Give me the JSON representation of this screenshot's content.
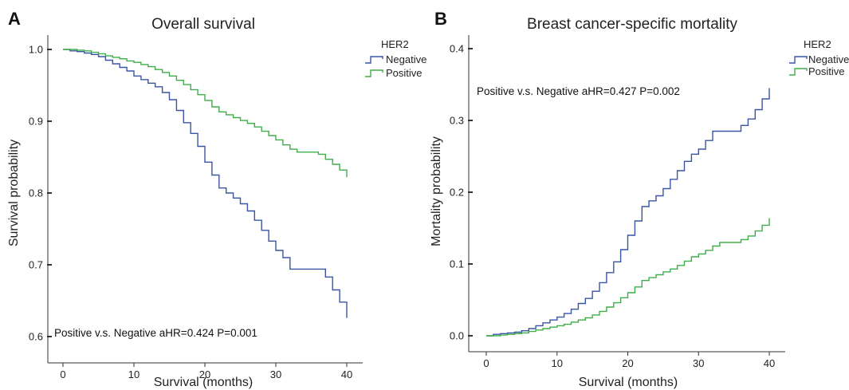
{
  "colors": {
    "negative": "#3a55a4",
    "positive": "#3fae49",
    "axis": "#333333"
  },
  "chart_data": [
    {
      "type": "line",
      "panel_label": "A",
      "title": "Overall survival",
      "xlabel": "Survival (months)",
      "ylabel": "Survival probability",
      "xlim": [
        0,
        40
      ],
      "ylim": [
        0.6,
        1.0
      ],
      "xticks": [
        "0",
        "10",
        "20",
        "30",
        "40"
      ],
      "yticks": [
        "0.6",
        "0.7",
        "0.8",
        "0.9",
        "1.0"
      ],
      "xtick_values": [
        0,
        10,
        20,
        30,
        40
      ],
      "ytick_values": [
        0.6,
        0.7,
        0.8,
        0.9,
        1.0
      ],
      "legend_title": "HER2",
      "legend_position": "top-right",
      "annotation": "Positive v.s. Negative aHR=0.424 P=0.001",
      "annotation_position": "bottom-left",
      "series": [
        {
          "name": "Negative",
          "color": "#3a55a4",
          "x": [
            0,
            1,
            2,
            3,
            4,
            5,
            6,
            7,
            8,
            9,
            10,
            11,
            12,
            13,
            14,
            15,
            16,
            17,
            18,
            19,
            20,
            21,
            22,
            23,
            24,
            25,
            26,
            27,
            28,
            29,
            30,
            31,
            32,
            33,
            34,
            35,
            36,
            37,
            38,
            39,
            40
          ],
          "y": [
            1.0,
            0.998,
            0.997,
            0.995,
            0.993,
            0.99,
            0.985,
            0.98,
            0.975,
            0.97,
            0.963,
            0.958,
            0.953,
            0.948,
            0.94,
            0.93,
            0.915,
            0.898,
            0.883,
            0.865,
            0.843,
            0.825,
            0.807,
            0.8,
            0.793,
            0.785,
            0.775,
            0.762,
            0.748,
            0.733,
            0.72,
            0.71,
            0.694,
            0.694,
            0.694,
            0.694,
            0.694,
            0.683,
            0.665,
            0.648,
            0.626
          ]
        },
        {
          "name": "Positive",
          "color": "#3fae49",
          "x": [
            0,
            1,
            2,
            3,
            4,
            5,
            6,
            7,
            8,
            9,
            10,
            11,
            12,
            13,
            14,
            15,
            16,
            17,
            18,
            19,
            20,
            21,
            22,
            23,
            24,
            25,
            26,
            27,
            28,
            29,
            30,
            31,
            32,
            33,
            34,
            35,
            36,
            37,
            38,
            39,
            40
          ],
          "y": [
            1.0,
            1.0,
            0.999,
            0.998,
            0.996,
            0.994,
            0.991,
            0.989,
            0.987,
            0.984,
            0.982,
            0.979,
            0.976,
            0.972,
            0.968,
            0.963,
            0.957,
            0.951,
            0.944,
            0.937,
            0.929,
            0.92,
            0.913,
            0.909,
            0.905,
            0.901,
            0.897,
            0.892,
            0.886,
            0.88,
            0.874,
            0.867,
            0.861,
            0.857,
            0.857,
            0.857,
            0.854,
            0.847,
            0.84,
            0.832,
            0.822
          ]
        }
      ]
    },
    {
      "type": "line",
      "panel_label": "B",
      "title": "Breast cancer-specific mortality",
      "xlabel": "Survival (months)",
      "ylabel": "Mortality probability",
      "xlim": [
        0,
        40
      ],
      "ylim": [
        0.0,
        0.4
      ],
      "xticks": [
        "0",
        "10",
        "20",
        "30",
        "40"
      ],
      "yticks": [
        "0.0",
        "0.1",
        "0.2",
        "0.3",
        "0.4"
      ],
      "xtick_values": [
        0,
        10,
        20,
        30,
        40
      ],
      "ytick_values": [
        0.0,
        0.1,
        0.2,
        0.3,
        0.4
      ],
      "legend_title": "HER2",
      "legend_position": "top-right",
      "annotation": "Positive v.s. Negative aHR=0.427 P=0.002",
      "annotation_position": "top-left",
      "series": [
        {
          "name": "Negative",
          "color": "#3a55a4",
          "x": [
            0,
            1,
            2,
            3,
            4,
            5,
            6,
            7,
            8,
            9,
            10,
            11,
            12,
            13,
            14,
            15,
            16,
            17,
            18,
            19,
            20,
            21,
            22,
            23,
            24,
            25,
            26,
            27,
            28,
            29,
            30,
            31,
            32,
            33,
            34,
            35,
            36,
            37,
            38,
            39,
            40
          ],
          "y": [
            0.0,
            0.002,
            0.003,
            0.004,
            0.005,
            0.007,
            0.01,
            0.014,
            0.018,
            0.022,
            0.026,
            0.031,
            0.037,
            0.045,
            0.052,
            0.062,
            0.074,
            0.088,
            0.103,
            0.12,
            0.14,
            0.16,
            0.18,
            0.188,
            0.195,
            0.205,
            0.218,
            0.23,
            0.243,
            0.253,
            0.26,
            0.272,
            0.285,
            0.285,
            0.285,
            0.285,
            0.293,
            0.302,
            0.315,
            0.33,
            0.345
          ]
        },
        {
          "name": "Positive",
          "color": "#3fae49",
          "x": [
            0,
            1,
            2,
            3,
            4,
            5,
            6,
            7,
            8,
            9,
            10,
            11,
            12,
            13,
            14,
            15,
            16,
            17,
            18,
            19,
            20,
            21,
            22,
            23,
            24,
            25,
            26,
            27,
            28,
            29,
            30,
            31,
            32,
            33,
            34,
            35,
            36,
            37,
            38,
            39,
            40
          ],
          "y": [
            0.0,
            0.0,
            0.001,
            0.002,
            0.003,
            0.004,
            0.006,
            0.008,
            0.01,
            0.012,
            0.014,
            0.016,
            0.019,
            0.022,
            0.025,
            0.029,
            0.034,
            0.04,
            0.046,
            0.053,
            0.06,
            0.068,
            0.077,
            0.081,
            0.085,
            0.089,
            0.093,
            0.098,
            0.104,
            0.11,
            0.114,
            0.119,
            0.125,
            0.13,
            0.13,
            0.13,
            0.134,
            0.139,
            0.146,
            0.154,
            0.164
          ]
        }
      ]
    }
  ]
}
